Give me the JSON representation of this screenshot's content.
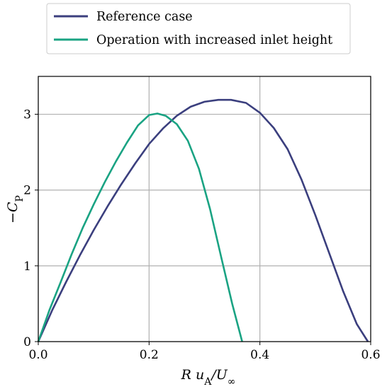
{
  "chart_data": {
    "type": "line",
    "title": "",
    "xlabel": "R u_A/U_∞",
    "ylabel": "−C_P",
    "xlim": [
      0.0,
      0.6
    ],
    "ylim": [
      0,
      3.5
    ],
    "xticks": [
      0.0,
      0.2,
      0.4,
      0.6
    ],
    "xtick_labels": [
      "0.0",
      "0.2",
      "0.4",
      "0.6"
    ],
    "yticks": [
      0,
      1,
      2,
      3
    ],
    "ytick_labels": [
      "0",
      "1",
      "2",
      "3"
    ],
    "grid": true,
    "legend_position": "top-left, outside above plot",
    "series": [
      {
        "name": "Reference case",
        "color": "#3b3f7e",
        "x": [
          0.0,
          0.025,
          0.05,
          0.075,
          0.1,
          0.125,
          0.15,
          0.175,
          0.2,
          0.225,
          0.25,
          0.275,
          0.3,
          0.325,
          0.348,
          0.375,
          0.4,
          0.425,
          0.45,
          0.475,
          0.5,
          0.525,
          0.55,
          0.575,
          0.595
        ],
        "y": [
          0.0,
          0.412,
          0.784,
          1.137,
          1.471,
          1.784,
          2.078,
          2.352,
          2.608,
          2.812,
          2.98,
          3.1,
          3.165,
          3.19,
          3.19,
          3.15,
          3.02,
          2.82,
          2.54,
          2.14,
          1.67,
          1.17,
          0.67,
          0.23,
          0.0
        ]
      },
      {
        "name": "Operation with increased inlet height",
        "color": "#1aa383",
        "x": [
          0.0,
          0.02,
          0.04,
          0.06,
          0.08,
          0.1,
          0.12,
          0.14,
          0.16,
          0.18,
          0.2,
          0.215,
          0.23,
          0.25,
          0.27,
          0.29,
          0.31,
          0.33,
          0.35,
          0.368
        ],
        "y": [
          0.0,
          0.414,
          0.777,
          1.149,
          1.497,
          1.81,
          2.104,
          2.376,
          2.626,
          2.853,
          2.99,
          3.01,
          2.98,
          2.87,
          2.65,
          2.28,
          1.75,
          1.12,
          0.5,
          0.0
        ]
      }
    ]
  }
}
